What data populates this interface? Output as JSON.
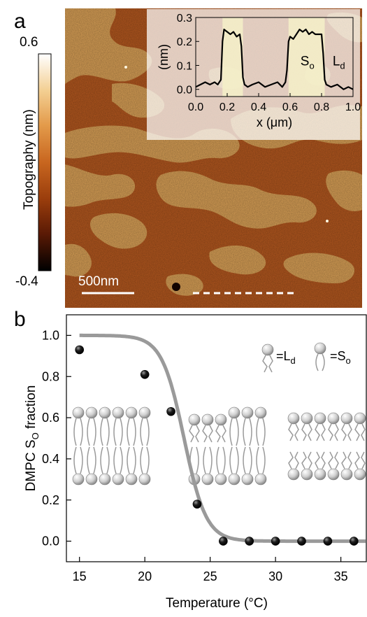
{
  "panel_a": {
    "label": "a",
    "colorbar": {
      "title": "Topography (nm)",
      "max_label": "0.6",
      "min_label": "-0.4",
      "colors": [
        "#000000",
        "#5a1a05",
        "#9a3d0c",
        "#c8661f",
        "#e39a4a",
        "#f3cf92",
        "#ffffff"
      ]
    },
    "scale_bar": "500nm",
    "image_colors": {
      "dark_domain": "#b4581f",
      "light_domain": "#d9a056"
    },
    "inset": {
      "xlabel": "x (μm)",
      "ylabel": "(nm)",
      "so_label": "So",
      "ld_label": "Ld",
      "x_ticks": [
        "0.0",
        "0.2",
        "0.4",
        "0.6",
        "0.8",
        "1.0"
      ],
      "y_ticks": [
        "0.0",
        "0.1",
        "0.2",
        "0.3"
      ]
    }
  },
  "panel_b": {
    "label": "b",
    "legend": {
      "ld": "=Ld",
      "so": "=So"
    }
  },
  "chart_data": [
    {
      "type": "line",
      "panel": "a-inset",
      "title": "",
      "xlabel": "x (μm)",
      "ylabel": "(nm)",
      "xlim": [
        0,
        1.0
      ],
      "ylim": [
        -0.03,
        0.3
      ],
      "x_ticks": [
        0,
        0.2,
        0.4,
        0.6,
        0.8,
        1.0
      ],
      "y_ticks": [
        0,
        0.1,
        0.2,
        0.3
      ],
      "highlight_regions": [
        [
          0.17,
          0.3
        ],
        [
          0.59,
          0.82
        ]
      ],
      "series": [
        {
          "x": [
            0.0,
            0.03,
            0.06,
            0.09,
            0.12,
            0.14,
            0.16,
            0.17,
            0.18,
            0.2,
            0.22,
            0.24,
            0.26,
            0.28,
            0.29,
            0.3,
            0.31,
            0.33,
            0.36,
            0.4,
            0.44,
            0.48,
            0.52,
            0.55,
            0.57,
            0.58,
            0.59,
            0.6,
            0.62,
            0.64,
            0.66,
            0.68,
            0.7,
            0.72,
            0.74,
            0.76,
            0.78,
            0.8,
            0.81,
            0.82,
            0.83,
            0.86,
            0.9,
            0.94,
            0.97,
            1.0
          ],
          "y": [
            0.01,
            0.02,
            0.03,
            0.02,
            0.03,
            0.02,
            0.04,
            0.2,
            0.25,
            0.24,
            0.23,
            0.24,
            0.22,
            0.23,
            0.18,
            0.05,
            0.02,
            0.01,
            0.02,
            0.03,
            0.01,
            0.02,
            0.03,
            0.01,
            0.03,
            0.08,
            0.2,
            0.22,
            0.21,
            0.23,
            0.25,
            0.24,
            0.25,
            0.23,
            0.24,
            0.23,
            0.23,
            0.23,
            0.15,
            0.04,
            0.02,
            0.01,
            0.02,
            0.0,
            0.01,
            0.0
          ]
        }
      ]
    },
    {
      "type": "scatter",
      "panel": "b",
      "title": "",
      "xlabel": "Temperature (°C)",
      "ylabel": "DMPC SO fraction",
      "xlim": [
        14,
        37
      ],
      "ylim": [
        -0.1,
        1.1
      ],
      "x_ticks": [
        15,
        20,
        25,
        30,
        35
      ],
      "y_ticks": [
        0.0,
        0.2,
        0.4,
        0.6,
        0.8,
        1.0
      ],
      "series": [
        {
          "x": [
            15,
            20,
            22,
            24,
            26,
            28,
            30,
            32,
            34,
            36
          ],
          "y": [
            0.93,
            0.81,
            0.63,
            0.18,
            0.0,
            0.0,
            0.0,
            0.0,
            0.0,
            0.0
          ]
        }
      ],
      "fit": {
        "function": "sigmoid",
        "midpoint": 23,
        "width": 0.85
      }
    }
  ]
}
